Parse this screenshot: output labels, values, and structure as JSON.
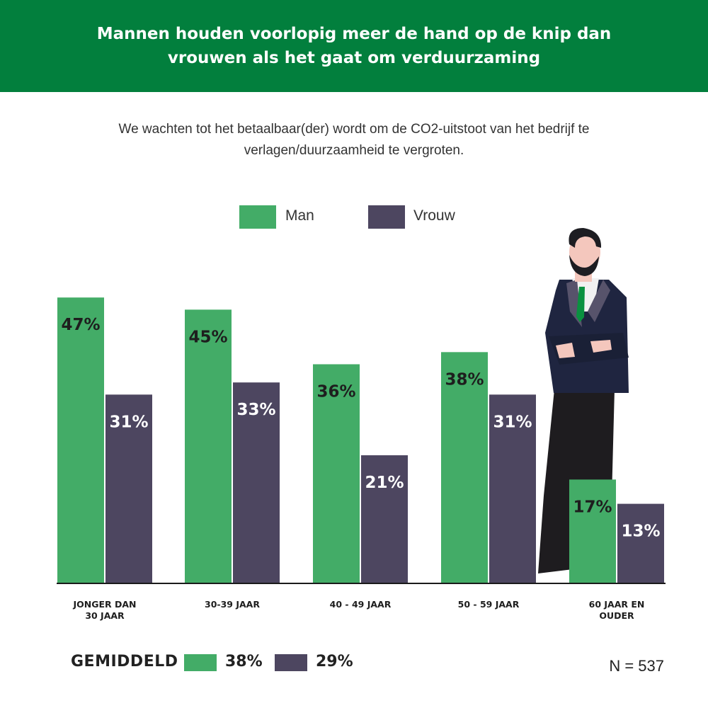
{
  "header": {
    "title": "Mannen houden voorlopig meer de hand op de knip dan vrouwen als het gaat om verduurzaming"
  },
  "subtitle": "We wachten tot het betaalbaar(der) wordt om de CO2-uitstoot van het bedrijf te verlagen/duurzaamheid te vergroten.",
  "legend": {
    "man": "Man",
    "vrouw": "Vrouw"
  },
  "colors": {
    "man": "#43ac67",
    "vrouw": "#4d4660",
    "banner": "#027f3d"
  },
  "chart_data": {
    "type": "bar",
    "categories": [
      "JONGER DAN 30 JAAR",
      "30-39 JAAR",
      "40 - 49 JAAR",
      "50 - 59 JAAR",
      "60 JAAR EN OUDER"
    ],
    "series": [
      {
        "name": "Man",
        "values": [
          47,
          45,
          36,
          38,
          17
        ]
      },
      {
        "name": "Vrouw",
        "values": [
          31,
          33,
          21,
          31,
          13
        ]
      }
    ],
    "data_labels": {
      "man": [
        "47%",
        "45%",
        "36%",
        "38%",
        "17%"
      ],
      "vrouw": [
        "31%",
        "33%",
        "21%",
        "31%",
        "13%"
      ]
    },
    "title": "",
    "xlabel": "",
    "ylabel": "",
    "grid": false,
    "legend_position": "top"
  },
  "average": {
    "label": "GEMIDDELD",
    "man": "38%",
    "vrouw": "29%"
  },
  "sample": "N = 537"
}
